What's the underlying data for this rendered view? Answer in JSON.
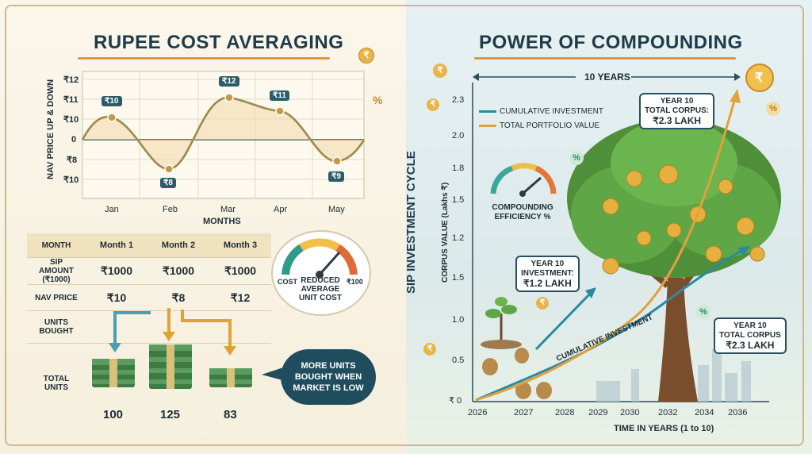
{
  "left": {
    "title": "RUPEE COST AVERAGING",
    "chart_data": {
      "type": "line",
      "categories": [
        "Jan",
        "Feb",
        "Mar",
        "Apr",
        "May"
      ],
      "xlabel": "MONTHS",
      "ylabel": "NAV PRICE UP & DOWN",
      "ytick_labels": [
        "₹12",
        "₹11",
        "₹10",
        "0",
        "₹8",
        "₹10"
      ],
      "point_labels": [
        "₹10",
        "₹8",
        "₹12",
        "₹11",
        "₹9"
      ]
    },
    "table": {
      "headers": [
        "MONTH",
        "Month 1",
        "Month 2",
        "Month 3"
      ],
      "rows": [
        [
          "SIP AMOUNT (₹1000)",
          "₹1000",
          "₹1000",
          "₹1000"
        ],
        [
          "NAV PRICE",
          "₹10",
          "₹8",
          "₹12"
        ],
        [
          "UNITS BOUGHT",
          "",
          "",
          ""
        ],
        [
          "TOTAL UNITS",
          "",
          "",
          ""
        ]
      ]
    },
    "units": [
      "100",
      "125",
      "83"
    ],
    "gauge": {
      "left_label": "COST",
      "right_label": "₹100",
      "caption": "REDUCED AVERAGE UNIT COST"
    },
    "speech": "MORE UNITS BOUGHT WHEN MARKET IS LOW",
    "percent_symbol": "%"
  },
  "right": {
    "title": "POWER OF COMPOUNDING",
    "vertical_label": "SIP INVESTMENT CYCLE",
    "years_label": "10 YEARS",
    "chart_data": {
      "type": "line",
      "ylabel": "CORPUS VALUE (Lakhs ₹)",
      "xlabel": "TIME IN YEARS (1 to 10)",
      "ytick_labels": [
        "2.3",
        "2.0",
        "1.8",
        "1.5",
        "1.2",
        "1.5",
        "1.0",
        "0.5",
        "₹ 0"
      ],
      "xtick_labels": [
        "2026",
        "2027",
        "2028",
        "2029",
        "2030",
        "2032",
        "2034",
        "2036"
      ],
      "series": [
        {
          "name": "CUMULATIVE INVESTMENT",
          "color": "#2a8aa0"
        },
        {
          "name": "TOTAL PORTFOLIO VALUE",
          "color": "#e2a13a"
        }
      ],
      "line_label": "CUMULATIVE INVESTMENT"
    },
    "gauge_caption": "COMPOUNDING EFFICIENCY %",
    "callout_top": {
      "line1": "YEAR 10",
      "line2": "TOTAL CORPUS:",
      "line3": "₹2.3 LAKH"
    },
    "callout_mid": {
      "line1": "YEAR 10",
      "line2": "INVESTMENT:",
      "line3": "₹1.2 LAKH"
    },
    "callout_bottom": {
      "line1": "YEAR 10",
      "line2": "TOTAL CORPUS",
      "line3": "₹2.3 LAKH"
    },
    "coin_symbol": "₹",
    "percent_symbol": "%"
  }
}
